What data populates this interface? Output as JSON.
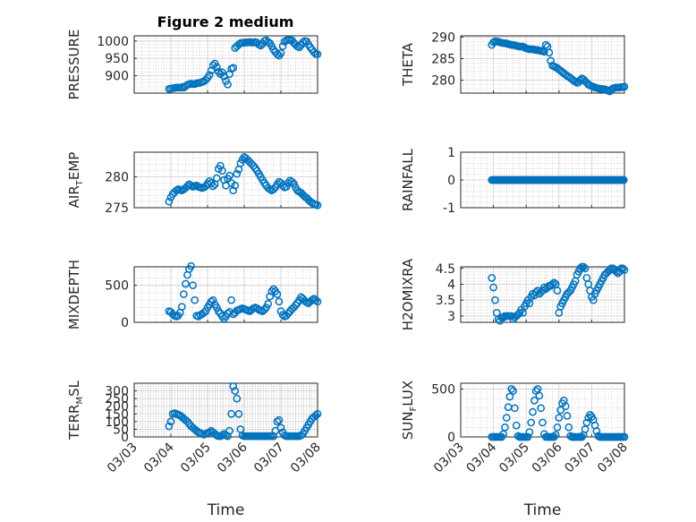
{
  "figure_title": "Figure 2 medium",
  "colors": {
    "marker": "#0072BD",
    "axis": "#262626",
    "grid": "#b8b8b8"
  },
  "chart_data": [
    {
      "type": "scatter",
      "id": "pressure",
      "ylabel": "PRESSURE",
      "xlabel": "",
      "yticks": [
        900,
        950,
        1000
      ],
      "ylim": [
        850,
        1015
      ],
      "xticks": [
        "03/03",
        "03/04",
        "03/05",
        "03/06",
        "03/07",
        "03/08"
      ],
      "xtick_labels_shown": false,
      "x": [
        0.95,
        1.0,
        1.05,
        1.1,
        1.15,
        1.2,
        1.25,
        1.3,
        1.35,
        1.4,
        1.45,
        1.5,
        1.55,
        1.6,
        1.65,
        1.7,
        1.75,
        1.8,
        1.85,
        1.9,
        1.95,
        2.0,
        2.05,
        2.1,
        2.15,
        2.2,
        2.25,
        2.3,
        2.35,
        2.4,
        2.45,
        2.5,
        2.55,
        2.6,
        2.65,
        2.7,
        2.75,
        2.8,
        2.85,
        2.9,
        2.95,
        3.0,
        3.05,
        3.1,
        3.15,
        3.2,
        3.25,
        3.3,
        3.35,
        3.4,
        3.45,
        3.5,
        3.55,
        3.6,
        3.65,
        3.7,
        3.75,
        3.8,
        3.85,
        3.9,
        3.95,
        4.0,
        4.05,
        4.1,
        4.15,
        4.2,
        4.25,
        4.3,
        4.35,
        4.4,
        4.45,
        4.5,
        4.55,
        4.6,
        4.65,
        4.7,
        4.75,
        4.8,
        4.85,
        4.9,
        4.95,
        5.0
      ],
      "y": [
        862,
        863,
        864,
        865,
        866,
        866,
        866,
        867,
        866,
        870,
        874,
        876,
        877,
        876,
        876,
        878,
        879,
        880,
        882,
        884,
        888,
        894,
        902,
        915,
        930,
        935,
        925,
        912,
        905,
        910,
        898,
        885,
        875,
        905,
        920,
        923,
        980,
        985,
        990,
        994,
        995,
        995,
        996,
        996,
        997,
        996,
        996,
        997,
        995,
        990,
        987,
        992,
        1000,
        1002,
        997,
        994,
        985,
        975,
        968,
        962,
        958,
        965,
        985,
        998,
        1002,
        1003,
        1004,
        1002,
        995,
        990,
        985,
        982,
        988,
        996,
        1000,
        999,
        990,
        982,
        975,
        968,
        963,
        962
      ]
    },
    {
      "type": "scatter",
      "id": "theta",
      "ylabel": "THETA",
      "xlabel": "",
      "yticks": [
        280,
        285,
        290
      ],
      "ylim": [
        277,
        290.3
      ],
      "xticks": [
        "03/03",
        "03/04",
        "03/05",
        "03/06",
        "03/07",
        "03/08"
      ],
      "xtick_labels_shown": false,
      "x": [
        0.95,
        1.0,
        1.05,
        1.1,
        1.15,
        1.2,
        1.25,
        1.3,
        1.35,
        1.4,
        1.45,
        1.5,
        1.55,
        1.6,
        1.65,
        1.7,
        1.75,
        1.8,
        1.85,
        1.9,
        1.95,
        2.0,
        2.05,
        2.1,
        2.15,
        2.2,
        2.25,
        2.3,
        2.35,
        2.4,
        2.45,
        2.5,
        2.55,
        2.6,
        2.65,
        2.7,
        2.75,
        2.8,
        2.85,
        2.9,
        2.95,
        3.0,
        3.05,
        3.1,
        3.15,
        3.2,
        3.25,
        3.3,
        3.35,
        3.4,
        3.45,
        3.5,
        3.55,
        3.6,
        3.65,
        3.7,
        3.75,
        3.8,
        3.85,
        3.9,
        3.95,
        4.0,
        4.05,
        4.1,
        4.15,
        4.2,
        4.25,
        4.3,
        4.35,
        4.4,
        4.45,
        4.5,
        4.55,
        4.6,
        4.65,
        4.7,
        4.75,
        4.8,
        4.85,
        4.9,
        4.95,
        5.0
      ],
      "y": [
        288.2,
        288.8,
        289.0,
        289.0,
        288.9,
        288.8,
        288.7,
        288.6,
        288.6,
        288.5,
        288.4,
        288.3,
        288.2,
        288.2,
        288.1,
        288.0,
        287.9,
        287.8,
        287.8,
        287.8,
        287.6,
        287.4,
        287.3,
        287.2,
        287.2,
        287.2,
        287.1,
        287.0,
        287.0,
        286.9,
        286.8,
        286.8,
        286.6,
        288.2,
        287.8,
        286.4,
        284.5,
        283.4,
        283.2,
        283.0,
        282.8,
        282.5,
        282.2,
        281.9,
        281.6,
        281.3,
        281.0,
        280.8,
        280.5,
        280.2,
        279.9,
        279.7,
        279.4,
        279.5,
        280.0,
        280.4,
        280.2,
        279.8,
        279.4,
        279.0,
        278.8,
        278.6,
        278.5,
        278.3,
        278.2,
        278.1,
        278.0,
        278.0,
        277.9,
        277.9,
        277.7,
        277.6,
        277.4,
        277.8,
        278.1,
        278.2,
        278.3,
        278.3,
        278.3,
        278.4,
        278.4,
        278.5
      ]
    },
    {
      "type": "scatter",
      "id": "air_temp",
      "ylabel_parts": [
        "AIR",
        "T",
        "EMP"
      ],
      "yticks": [
        275,
        280
      ],
      "ylim": [
        275,
        284
      ],
      "xticks": [
        "03/03",
        "03/04",
        "03/05",
        "03/06",
        "03/07",
        "03/08"
      ],
      "xtick_labels_shown": false,
      "x": [
        0.95,
        1.0,
        1.05,
        1.1,
        1.15,
        1.2,
        1.25,
        1.3,
        1.35,
        1.4,
        1.45,
        1.5,
        1.55,
        1.6,
        1.65,
        1.7,
        1.75,
        1.8,
        1.85,
        1.9,
        1.95,
        2.0,
        2.05,
        2.1,
        2.15,
        2.2,
        2.25,
        2.3,
        2.35,
        2.4,
        2.45,
        2.5,
        2.55,
        2.6,
        2.65,
        2.7,
        2.75,
        2.8,
        2.85,
        2.9,
        2.95,
        3.0,
        3.05,
        3.1,
        3.15,
        3.2,
        3.25,
        3.3,
        3.35,
        3.4,
        3.45,
        3.5,
        3.55,
        3.6,
        3.65,
        3.7,
        3.75,
        3.8,
        3.85,
        3.9,
        3.95,
        4.0,
        4.05,
        4.1,
        4.15,
        4.2,
        4.25,
        4.3,
        4.35,
        4.4,
        4.45,
        4.5,
        4.55,
        4.6,
        4.65,
        4.7,
        4.75,
        4.8,
        4.85,
        4.9,
        4.95,
        5.0
      ],
      "y": [
        276.0,
        276.7,
        277.2,
        277.5,
        277.8,
        278.0,
        277.9,
        277.8,
        278.0,
        278.2,
        278.5,
        278.8,
        278.6,
        278.4,
        278.5,
        278.6,
        278.4,
        278.3,
        278.2,
        278.3,
        278.5,
        278.9,
        279.3,
        279.0,
        278.5,
        278.8,
        279.8,
        281.3,
        281.8,
        281.0,
        279.5,
        278.6,
        279.7,
        280.2,
        279.0,
        277.8,
        278.6,
        280.5,
        281.2,
        282.2,
        282.8,
        283.2,
        283.0,
        282.7,
        282.4,
        282.1,
        281.8,
        281.4,
        281.0,
        280.5,
        280.0,
        279.5,
        279.0,
        278.6,
        278.2,
        278.0,
        277.8,
        278.0,
        278.3,
        278.8,
        279.2,
        279.0,
        278.6,
        278.3,
        278.4,
        279.0,
        279.4,
        279.2,
        278.9,
        278.3,
        277.8,
        277.6,
        277.4,
        277.1,
        276.8,
        276.6,
        276.3,
        276.0,
        275.8,
        275.6,
        275.5,
        275.4
      ]
    },
    {
      "type": "scatter",
      "id": "rainfall",
      "ylabel": "RAINFALL",
      "yticks": [
        -1,
        0,
        1
      ],
      "ylim": [
        -1,
        1
      ],
      "xticks": [
        "03/03",
        "03/04",
        "03/05",
        "03/06",
        "03/07",
        "03/08"
      ],
      "xtick_labels_shown": false,
      "x_start": 0.95,
      "x_end": 5.0,
      "x_step": 0.0333,
      "y_constant": 0
    },
    {
      "type": "scatter",
      "id": "mixdepth",
      "ylabel": "MIXDEPTH",
      "yticks": [
        0,
        500
      ],
      "ylim": [
        0,
        750
      ],
      "xticks": [
        "03/03",
        "03/04",
        "03/05",
        "03/06",
        "03/07",
        "03/08"
      ],
      "xtick_labels_shown": false,
      "x": [
        0.95,
        1.0,
        1.05,
        1.1,
        1.15,
        1.2,
        1.25,
        1.3,
        1.35,
        1.4,
        1.45,
        1.5,
        1.55,
        1.6,
        1.65,
        1.7,
        1.75,
        1.8,
        1.85,
        1.9,
        1.95,
        2.0,
        2.05,
        2.1,
        2.15,
        2.2,
        2.25,
        2.3,
        2.35,
        2.4,
        2.45,
        2.5,
        2.55,
        2.6,
        2.65,
        2.7,
        2.75,
        2.8,
        2.85,
        2.9,
        2.95,
        3.0,
        3.05,
        3.1,
        3.15,
        3.2,
        3.25,
        3.3,
        3.35,
        3.4,
        3.45,
        3.5,
        3.55,
        3.6,
        3.65,
        3.7,
        3.75,
        3.8,
        3.85,
        3.9,
        3.95,
        4.0,
        4.05,
        4.1,
        4.15,
        4.2,
        4.25,
        4.3,
        4.35,
        4.4,
        4.45,
        4.5,
        4.55,
        4.6,
        4.65,
        4.7,
        4.75,
        4.8,
        4.85,
        4.9,
        4.95,
        5.0
      ],
      "y": [
        150,
        140,
        110,
        90,
        80,
        90,
        130,
        210,
        380,
        520,
        640,
        720,
        760,
        500,
        300,
        90,
        80,
        100,
        110,
        130,
        150,
        200,
        240,
        280,
        300,
        240,
        200,
        150,
        120,
        80,
        50,
        80,
        120,
        140,
        300,
        110,
        130,
        160,
        170,
        180,
        190,
        180,
        170,
        160,
        150,
        170,
        190,
        200,
        190,
        170,
        160,
        150,
        170,
        200,
        250,
        350,
        420,
        450,
        420,
        380,
        280,
        150,
        100,
        80,
        90,
        120,
        150,
        180,
        200,
        230,
        260,
        300,
        340,
        320,
        290,
        270,
        260,
        280,
        300,
        320,
        300,
        280
      ]
    },
    {
      "type": "scatter",
      "id": "h2omixra",
      "ylabel": "H2OMIXRA",
      "yticks": [
        3,
        3.5,
        4,
        4.5
      ],
      "ylim": [
        2.8,
        4.55
      ],
      "xticks": [
        "03/03",
        "03/04",
        "03/05",
        "03/06",
        "03/07",
        "03/08"
      ],
      "xtick_labels_shown": false,
      "x": [
        0.95,
        1.0,
        1.05,
        1.1,
        1.15,
        1.2,
        1.25,
        1.3,
        1.35,
        1.4,
        1.45,
        1.5,
        1.55,
        1.6,
        1.65,
        1.7,
        1.75,
        1.8,
        1.85,
        1.9,
        1.95,
        2.0,
        2.05,
        2.1,
        2.15,
        2.2,
        2.25,
        2.3,
        2.35,
        2.4,
        2.45,
        2.5,
        2.55,
        2.6,
        2.65,
        2.7,
        2.75,
        2.8,
        2.85,
        2.9,
        2.95,
        3.0,
        3.05,
        3.1,
        3.15,
        3.2,
        3.25,
        3.3,
        3.35,
        3.4,
        3.45,
        3.5,
        3.55,
        3.6,
        3.65,
        3.7,
        3.75,
        3.8,
        3.85,
        3.9,
        3.95,
        4.0,
        4.05,
        4.1,
        4.15,
        4.2,
        4.25,
        4.3,
        4.35,
        4.4,
        4.45,
        4.5,
        4.55,
        4.6,
        4.65,
        4.7,
        4.75,
        4.8,
        4.85,
        4.9,
        4.95,
        5.0
      ],
      "y": [
        4.2,
        3.9,
        3.5,
        3.1,
        2.9,
        2.85,
        2.95,
        2.95,
        3.0,
        3.0,
        3.0,
        3.0,
        3.0,
        2.9,
        2.95,
        3.0,
        3.05,
        3.1,
        3.2,
        3.1,
        3.3,
        3.4,
        3.5,
        3.4,
        3.6,
        3.7,
        3.65,
        3.75,
        3.8,
        3.7,
        3.75,
        3.8,
        3.9,
        3.85,
        3.9,
        3.95,
        3.95,
        4.0,
        4.05,
        4.0,
        3.8,
        3.1,
        3.3,
        3.4,
        3.5,
        3.6,
        3.7,
        3.75,
        3.8,
        3.9,
        4.0,
        4.1,
        4.3,
        4.4,
        4.5,
        4.55,
        4.55,
        4.5,
        4.2,
        4.0,
        3.8,
        3.6,
        3.5,
        3.7,
        3.8,
        3.9,
        4.0,
        4.1,
        4.2,
        4.3,
        4.35,
        4.4,
        4.45,
        4.5,
        4.5,
        4.45,
        4.4,
        4.35,
        4.4,
        4.5,
        4.5,
        4.45
      ]
    },
    {
      "type": "scatter",
      "id": "terr_msl",
      "ylabel_parts": [
        "TERR",
        "M",
        "SL"
      ],
      "yticks": [
        0,
        50,
        100,
        150,
        200,
        250,
        300
      ],
      "ylim": [
        0,
        350
      ],
      "xticks": [
        "03/03",
        "03/04",
        "03/05",
        "03/06",
        "03/07",
        "03/08"
      ],
      "xlabel": "Time",
      "x": [
        0.95,
        1.0,
        1.05,
        1.1,
        1.15,
        1.2,
        1.25,
        1.3,
        1.35,
        1.4,
        1.45,
        1.5,
        1.55,
        1.6,
        1.65,
        1.7,
        1.75,
        1.8,
        1.85,
        1.9,
        1.95,
        2.0,
        2.05,
        2.1,
        2.15,
        2.2,
        2.25,
        2.3,
        2.35,
        2.4,
        2.45,
        2.5,
        2.55,
        2.6,
        2.65,
        2.7,
        2.75,
        2.8,
        2.85,
        2.9,
        2.95,
        3.0,
        3.05,
        3.1,
        3.15,
        3.2,
        3.25,
        3.3,
        3.35,
        3.4,
        3.45,
        3.5,
        3.55,
        3.6,
        3.65,
        3.7,
        3.75,
        3.8,
        3.85,
        3.9,
        3.95,
        4.0,
        4.05,
        4.1,
        4.15,
        4.2,
        4.25,
        4.3,
        4.35,
        4.4,
        4.45,
        4.5,
        4.55,
        4.6,
        4.65,
        4.7,
        4.75,
        4.8,
        4.85,
        4.9,
        4.95,
        5.0
      ],
      "y": [
        70,
        100,
        150,
        155,
        150,
        145,
        140,
        130,
        120,
        110,
        100,
        85,
        70,
        60,
        50,
        40,
        30,
        25,
        20,
        15,
        20,
        25,
        30,
        40,
        30,
        20,
        10,
        5,
        5,
        10,
        20,
        10,
        5,
        40,
        150,
        330,
        300,
        250,
        150,
        50,
        10,
        5,
        5,
        5,
        5,
        5,
        5,
        5,
        5,
        5,
        5,
        5,
        5,
        5,
        5,
        5,
        5,
        5,
        40,
        100,
        110,
        60,
        30,
        10,
        5,
        5,
        5,
        5,
        5,
        5,
        5,
        5,
        10,
        20,
        40,
        60,
        80,
        100,
        120,
        130,
        140,
        150
      ]
    },
    {
      "type": "scatter",
      "id": "sun_flux",
      "ylabel_parts": [
        "SUN",
        "F",
        "LUX"
      ],
      "yticks": [
        0,
        500
      ],
      "ylim": [
        0,
        560
      ],
      "xticks": [
        "03/03",
        "03/04",
        "03/05",
        "03/06",
        "03/07",
        "03/08"
      ],
      "xlabel": "Time",
      "x": [
        0.95,
        1.0,
        1.05,
        1.1,
        1.15,
        1.2,
        1.25,
        1.3,
        1.35,
        1.4,
        1.45,
        1.5,
        1.55,
        1.6,
        1.65,
        1.7,
        1.75,
        1.8,
        1.85,
        1.9,
        1.95,
        2.0,
        2.05,
        2.1,
        2.15,
        2.2,
        2.25,
        2.3,
        2.35,
        2.4,
        2.45,
        2.5,
        2.55,
        2.6,
        2.65,
        2.7,
        2.75,
        2.8,
        2.85,
        2.9,
        2.95,
        3.0,
        3.05,
        3.1,
        3.15,
        3.2,
        3.25,
        3.3,
        3.35,
        3.4,
        3.45,
        3.5,
        3.55,
        3.6,
        3.65,
        3.7,
        3.75,
        3.8,
        3.85,
        3.9,
        3.95,
        4.0,
        4.05,
        4.1,
        4.15,
        4.2,
        4.25,
        4.3,
        4.35,
        4.4,
        4.45,
        4.5,
        4.55,
        4.6,
        4.65,
        4.7,
        4.75,
        4.8,
        4.85,
        4.9,
        4.95,
        5.0
      ],
      "y": [
        0,
        0,
        0,
        0,
        0,
        0,
        0,
        30,
        100,
        200,
        310,
        420,
        500,
        480,
        300,
        120,
        10,
        0,
        0,
        0,
        0,
        0,
        0,
        50,
        150,
        260,
        380,
        480,
        500,
        430,
        300,
        150,
        30,
        0,
        0,
        0,
        0,
        0,
        0,
        20,
        100,
        200,
        280,
        350,
        380,
        320,
        220,
        100,
        10,
        0,
        0,
        0,
        0,
        0,
        0,
        0,
        20,
        80,
        150,
        200,
        230,
        210,
        180,
        120,
        60,
        10,
        0,
        0,
        0,
        0,
        0,
        0,
        0,
        0,
        0,
        0,
        0,
        0,
        0,
        0,
        0,
        0
      ]
    }
  ]
}
